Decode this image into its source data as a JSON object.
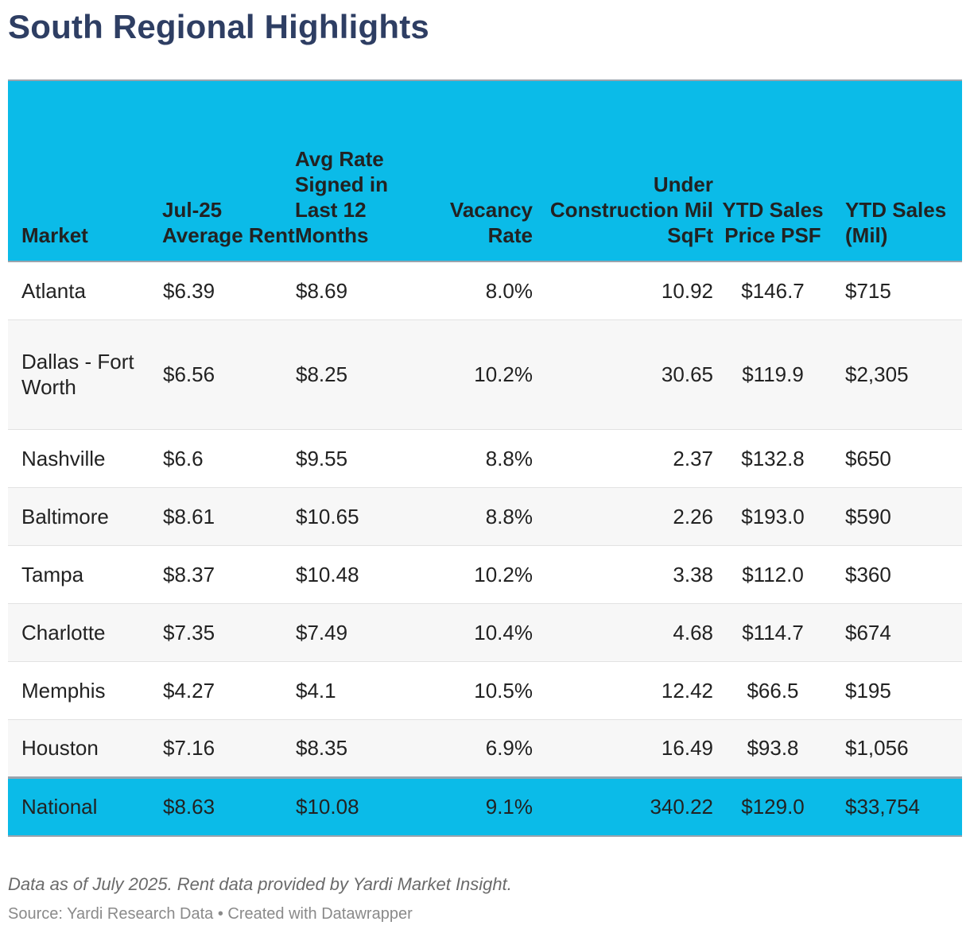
{
  "title": "South Regional Highlights",
  "chart_data": {
    "type": "table",
    "title": "South Regional Highlights",
    "columns": [
      "Market",
      "Jul-25 Average Rent",
      "Avg Rate Signed in Last 12 Months",
      "Vacancy Rate",
      "Under Construction Mil SqFt",
      "YTD Sales Price PSF",
      "YTD Sales (Mil)"
    ],
    "rows": [
      [
        "Atlanta",
        "$6.39",
        "$8.69",
        "8.0%",
        "10.92",
        "$146.7",
        "$715"
      ],
      [
        "Dallas - Fort Worth",
        "$6.56",
        "$8.25",
        "10.2%",
        "30.65",
        "$119.9",
        "$2,305"
      ],
      [
        "Nashville",
        "$6.6",
        "$9.55",
        "8.8%",
        "2.37",
        "$132.8",
        "$650"
      ],
      [
        "Baltimore",
        "$8.61",
        "$10.65",
        "8.8%",
        "2.26",
        "$193.0",
        "$590"
      ],
      [
        "Tampa",
        "$8.37",
        "$10.48",
        "10.2%",
        "3.38",
        "$112.0",
        "$360"
      ],
      [
        "Charlotte",
        "$7.35",
        "$7.49",
        "10.4%",
        "4.68",
        "$114.7",
        "$674"
      ],
      [
        "Memphis",
        "$4.27",
        "$4.1",
        "10.5%",
        "12.42",
        "$66.5",
        "$195"
      ],
      [
        "Houston",
        "$7.16",
        "$8.35",
        "6.9%",
        "16.49",
        "$93.8",
        "$1,056"
      ]
    ],
    "total_row": [
      "National",
      "$8.63",
      "$10.08",
      "9.1%",
      "340.22",
      "$129.0",
      "$33,754"
    ],
    "header_color": "#0bbbe8"
  },
  "notes": "Data as of July 2025. Rent data provided by Yardi Market Insight.",
  "source": "Source: Yardi Research Data • Created with Datawrapper",
  "colors": {
    "title": "#2e3e63",
    "header_bg": "#0bbbe8",
    "stripe": "#f7f7f7"
  }
}
